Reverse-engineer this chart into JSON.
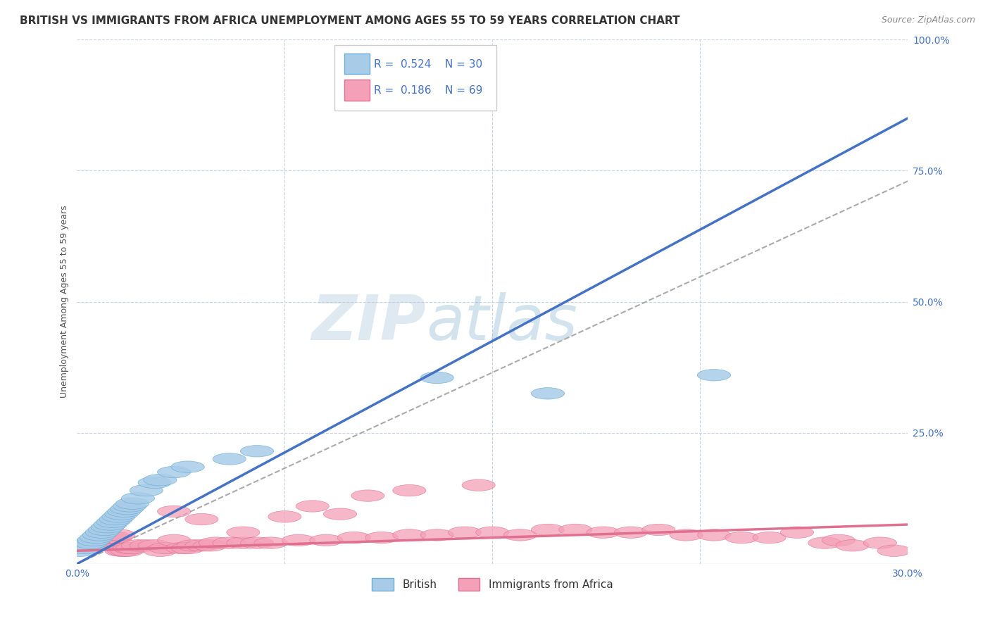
{
  "title": "BRITISH VS IMMIGRANTS FROM AFRICA UNEMPLOYMENT AMONG AGES 55 TO 59 YEARS CORRELATION CHART",
  "source": "Source: ZipAtlas.com",
  "ylabel": "Unemployment Among Ages 55 to 59 years",
  "watermark_zip": "ZIP",
  "watermark_atlas": "atlas",
  "xlim": [
    0.0,
    0.3
  ],
  "ylim": [
    0.0,
    1.0
  ],
  "yticks": [
    0.0,
    0.25,
    0.5,
    0.75,
    1.0
  ],
  "ytick_labels": [
    "",
    "25.0%",
    "50.0%",
    "75.0%",
    "100.0%"
  ],
  "xticks": [
    0.0,
    0.3
  ],
  "xtick_labels": [
    "0.0%",
    "30.0%"
  ],
  "grid_yticks": [
    0.25,
    0.5,
    0.75,
    1.0
  ],
  "grid_xticks": [
    0.075,
    0.15,
    0.225
  ],
  "british_scatter": {
    "color": "#a8cce8",
    "edge_color": "#6aaed6",
    "x": [
      0.001,
      0.003,
      0.004,
      0.005,
      0.006,
      0.007,
      0.008,
      0.009,
      0.01,
      0.011,
      0.012,
      0.013,
      0.014,
      0.015,
      0.016,
      0.017,
      0.018,
      0.019,
      0.02,
      0.022,
      0.025,
      0.028,
      0.03,
      0.035,
      0.04,
      0.055,
      0.065,
      0.13,
      0.17,
      0.23
    ],
    "y": [
      0.025,
      0.03,
      0.035,
      0.04,
      0.045,
      0.05,
      0.055,
      0.06,
      0.065,
      0.07,
      0.075,
      0.08,
      0.085,
      0.09,
      0.095,
      0.1,
      0.105,
      0.11,
      0.115,
      0.125,
      0.14,
      0.155,
      0.16,
      0.175,
      0.185,
      0.2,
      0.215,
      0.355,
      0.325,
      0.36
    ]
  },
  "africa_scatter": {
    "color": "#f4a0b8",
    "edge_color": "#e07090",
    "x": [
      0.001,
      0.002,
      0.003,
      0.004,
      0.005,
      0.006,
      0.007,
      0.008,
      0.009,
      0.01,
      0.011,
      0.012,
      0.013,
      0.014,
      0.015,
      0.016,
      0.017,
      0.018,
      0.019,
      0.02,
      0.022,
      0.025,
      0.028,
      0.03,
      0.032,
      0.035,
      0.038,
      0.04,
      0.042,
      0.045,
      0.048,
      0.05,
      0.055,
      0.06,
      0.065,
      0.07,
      0.08,
      0.09,
      0.1,
      0.11,
      0.12,
      0.13,
      0.14,
      0.15,
      0.16,
      0.17,
      0.18,
      0.19,
      0.2,
      0.21,
      0.22,
      0.23,
      0.24,
      0.25,
      0.26,
      0.27,
      0.275,
      0.28,
      0.29,
      0.295,
      0.035,
      0.045,
      0.06,
      0.075,
      0.085,
      0.095,
      0.105,
      0.12,
      0.145
    ],
    "y": [
      0.03,
      0.03,
      0.035,
      0.035,
      0.04,
      0.04,
      0.04,
      0.045,
      0.045,
      0.045,
      0.05,
      0.05,
      0.05,
      0.05,
      0.055,
      0.025,
      0.025,
      0.025,
      0.03,
      0.03,
      0.035,
      0.035,
      0.035,
      0.025,
      0.03,
      0.045,
      0.03,
      0.03,
      0.035,
      0.035,
      0.035,
      0.04,
      0.04,
      0.04,
      0.04,
      0.04,
      0.045,
      0.045,
      0.05,
      0.05,
      0.055,
      0.055,
      0.06,
      0.06,
      0.055,
      0.065,
      0.065,
      0.06,
      0.06,
      0.065,
      0.055,
      0.055,
      0.05,
      0.05,
      0.06,
      0.04,
      0.045,
      0.035,
      0.04,
      0.025,
      0.1,
      0.085,
      0.06,
      0.09,
      0.11,
      0.095,
      0.13,
      0.14,
      0.15
    ]
  },
  "british_trend": {
    "x": [
      0.0,
      0.3
    ],
    "y": [
      0.0,
      0.85
    ],
    "color": "#4472c4",
    "linewidth": 2.5
  },
  "africa_trend": {
    "x": [
      0.0,
      0.3
    ],
    "y": [
      0.025,
      0.075
    ],
    "color": "#e07090",
    "linewidth": 2.5
  },
  "dashed_trend": {
    "x": [
      0.0,
      0.3
    ],
    "y": [
      0.0,
      0.73
    ],
    "color": "#aaaaaa",
    "linewidth": 1.5,
    "linestyle": "--"
  },
  "grid_color": "#c8d4e8",
  "background_color": "#ffffff",
  "title_fontsize": 11,
  "axis_label_fontsize": 9,
  "tick_fontsize": 10,
  "tick_color": "#4472c4"
}
